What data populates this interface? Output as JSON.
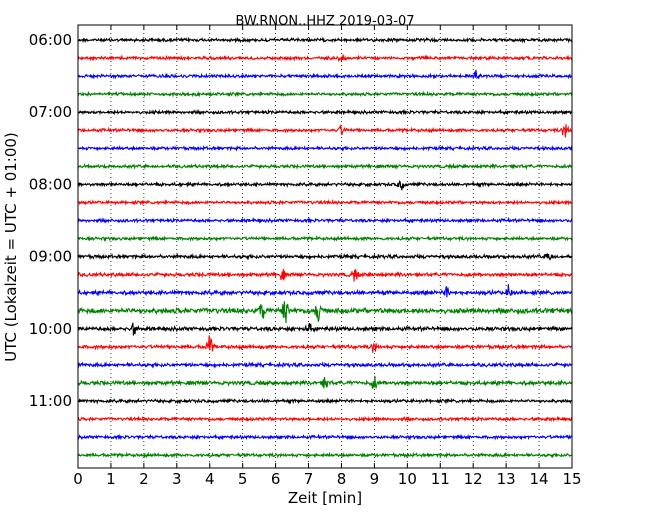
{
  "chart_data": {
    "type": "line",
    "title": "BW.RNON..HHZ 2019-03-07",
    "xlabel": "Zeit  [min]",
    "ylabel": "UTC (Lokalzeit = UTC + 01:00)",
    "xlim": [
      0,
      15
    ],
    "x_ticks": [
      "0",
      "1",
      "2",
      "3",
      "4",
      "5",
      "6",
      "7",
      "8",
      "9",
      "10",
      "11",
      "12",
      "13",
      "14",
      "15"
    ],
    "y_tick_labels": [
      "06:00",
      "07:00",
      "08:00",
      "09:00",
      "10:00",
      "11:00"
    ],
    "vertical_grid": "dotted at every minute",
    "row_interval_minutes": 15,
    "row_colors": [
      "#000000",
      "#ff0000",
      "#0000ff",
      "#008000"
    ],
    "rows": [
      {
        "start": "06:00",
        "color": "#000000",
        "amplitude": 0.35,
        "events": []
      },
      {
        "start": "06:15",
        "color": "#ff0000",
        "amplitude": 0.35,
        "events": [
          {
            "t": 8.0,
            "amp": 1.3
          }
        ]
      },
      {
        "start": "06:30",
        "color": "#0000ff",
        "amplitude": 0.35,
        "events": [
          {
            "t": 12.1,
            "amp": 1.5
          }
        ]
      },
      {
        "start": "06:45",
        "color": "#008000",
        "amplitude": 0.35,
        "events": []
      },
      {
        "start": "07:00",
        "color": "#000000",
        "amplitude": 0.35,
        "events": []
      },
      {
        "start": "07:15",
        "color": "#ff0000",
        "amplitude": 0.35,
        "events": [
          {
            "t": 8.0,
            "amp": 1.1
          },
          {
            "t": 14.8,
            "amp": 1.8
          }
        ]
      },
      {
        "start": "07:30",
        "color": "#0000ff",
        "amplitude": 0.35,
        "events": []
      },
      {
        "start": "07:45",
        "color": "#008000",
        "amplitude": 0.35,
        "events": []
      },
      {
        "start": "08:00",
        "color": "#000000",
        "amplitude": 0.35,
        "events": [
          {
            "t": 9.8,
            "amp": 1.3
          }
        ]
      },
      {
        "start": "08:15",
        "color": "#ff0000",
        "amplitude": 0.35,
        "events": []
      },
      {
        "start": "08:30",
        "color": "#0000ff",
        "amplitude": 0.35,
        "events": []
      },
      {
        "start": "08:45",
        "color": "#008000",
        "amplitude": 0.35,
        "events": []
      },
      {
        "start": "09:00",
        "color": "#000000",
        "amplitude": 0.4,
        "events": [
          {
            "t": 14.3,
            "amp": 1.4
          }
        ]
      },
      {
        "start": "09:15",
        "color": "#ff0000",
        "amplitude": 0.4,
        "events": [
          {
            "t": 6.2,
            "amp": 1.2
          },
          {
            "t": 8.4,
            "amp": 1.4
          }
        ]
      },
      {
        "start": "09:30",
        "color": "#0000ff",
        "amplitude": 0.45,
        "events": [
          {
            "t": 11.2,
            "amp": 1.3
          },
          {
            "t": 13.1,
            "amp": 1.8
          }
        ]
      },
      {
        "start": "09:45",
        "color": "#008000",
        "amplitude": 0.6,
        "events": [
          {
            "t": 5.6,
            "amp": 2.3
          },
          {
            "t": 6.3,
            "amp": 3.0
          },
          {
            "t": 7.3,
            "amp": 3.0
          }
        ]
      },
      {
        "start": "10:00",
        "color": "#000000",
        "amplitude": 0.45,
        "events": [
          {
            "t": 1.7,
            "amp": 1.4
          },
          {
            "t": 7.0,
            "amp": 1.2
          }
        ]
      },
      {
        "start": "10:15",
        "color": "#ff0000",
        "amplitude": 0.4,
        "events": [
          {
            "t": 4.0,
            "amp": 2.5
          },
          {
            "t": 9.0,
            "amp": 1.2
          }
        ]
      },
      {
        "start": "10:30",
        "color": "#0000ff",
        "amplitude": 0.4,
        "events": []
      },
      {
        "start": "10:45",
        "color": "#008000",
        "amplitude": 0.45,
        "events": [
          {
            "t": 7.5,
            "amp": 1.5
          },
          {
            "t": 9.0,
            "amp": 1.4
          }
        ]
      },
      {
        "start": "11:00",
        "color": "#000000",
        "amplitude": 0.35,
        "events": []
      },
      {
        "start": "11:15",
        "color": "#ff0000",
        "amplitude": 0.35,
        "events": []
      },
      {
        "start": "11:30",
        "color": "#0000ff",
        "amplitude": 0.35,
        "events": []
      },
      {
        "start": "11:45",
        "color": "#008000",
        "amplitude": 0.35,
        "events": []
      }
    ]
  }
}
